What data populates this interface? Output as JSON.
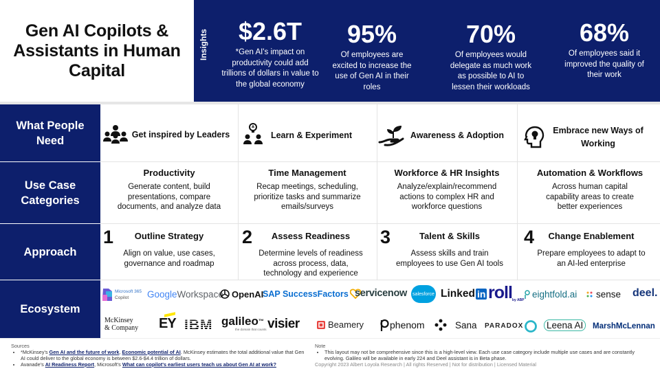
{
  "title": "Gen AI Copilots & Assistants in Human Capital",
  "insights": {
    "label": "Insights",
    "stats": [
      {
        "value": "$2.6T",
        "desc": "*Gen AI's impact on productivity could add trillions of dollars in value to the global economy"
      },
      {
        "value": "95%",
        "desc": "Of employees are excited to increase the use of Gen AI in their roles"
      },
      {
        "value": "70%",
        "desc": "Of employees would delegate as much work as possible to AI to lessen their workloads"
      },
      {
        "value": "68%",
        "desc": "Of  employees said it improved the quality of their work"
      }
    ]
  },
  "rows": {
    "needs_label": "What People Need",
    "use_case_label": "Use Case Categories",
    "approach_label": "Approach",
    "ecosystem_label": "Ecosystem"
  },
  "needs": [
    {
      "label": "Get inspired by Leaders",
      "icon": "audience-icon"
    },
    {
      "label": "Learn & Experiment",
      "icon": "idea-team-icon"
    },
    {
      "label": "Awareness & Adoption",
      "icon": "plant-hand-icon"
    },
    {
      "label": "Embrace new Ways of Working",
      "icon": "head-lightbulb-icon"
    }
  ],
  "use_cases": [
    {
      "title": "Productivity",
      "desc": "Generate content, build presentations, compare documents, and analyze data"
    },
    {
      "title": "Time Management",
      "desc": "Recap meetings, scheduling, prioritize tasks and summarize emails/surveys"
    },
    {
      "title": "Workforce & HR Insights",
      "desc": "Analyze/explain/recommend actions to complex HR and workforce questions"
    },
    {
      "title": "Automation & Workflows",
      "desc": "Across human capital capability areas to create better experiences"
    }
  ],
  "approach": [
    {
      "num": "1",
      "title": "Outline Strategy",
      "desc": "Align on value, use cases, governance and roadmap"
    },
    {
      "num": "2",
      "title": "Assess Readiness",
      "desc": "Determine levels of readiness across process, data, technology and experience"
    },
    {
      "num": "3",
      "title": "Talent & Skills",
      "desc": "Assess skills and train employees to use Gen AI tools"
    },
    {
      "num": "4",
      "title": "Change Enablement",
      "desc": "Prepare employees to adapt to an AI-led enterprise"
    }
  ],
  "ecosystem": {
    "ms365": {
      "line1": "Microsoft 365",
      "line2": "Copilot"
    },
    "google": {
      "g": "Google",
      "w": " Workspace"
    },
    "openai": "OpenAI",
    "sap": "SAP SuccessFactors",
    "servicenow": "servicenow",
    "salesforce": "salesforce",
    "linkedin": {
      "text": "Linked",
      "badge": "in"
    },
    "roll": {
      "text": "roll",
      "sub": "by ABP"
    },
    "eightfold": "eightfold.ai",
    "sense": "sense",
    "deel": "deel.",
    "mckinsey": {
      "line1": "McKinsey",
      "line2": "& Company"
    },
    "ey": "EY",
    "ibm": "IBM",
    "galileo": {
      "text": "galileo",
      "sup": "™",
      "sub": "the domain that counts"
    },
    "visier": "visier",
    "beamery": "Beamery",
    "phenom": "phenom",
    "sana": "Sana",
    "paradox": "PARADOX",
    "leena": {
      "text": "Leena AI"
    },
    "marsh": "MarshMcLennan"
  },
  "footer": {
    "sources_label": "Sources",
    "src1_pre": "*McKinsey's ",
    "src1_link1": "Gen AI and the future of work",
    "src1_mid": ", ",
    "src1_link2": "Economic potential of AI",
    "src1_post": ". McKinsey estimates the total additional value that Gen AI could deliver to the global economy is between $2.6-$4.4 trillion of dollars.",
    "src2_pre": "Avanade's ",
    "src2_link1": "AI Readiness Report",
    "src2_mid": ", Microsoft's ",
    "src2_link2": "What can copilot's earliest users teach us about Gen AI at work?",
    "note_label": "Note",
    "note": "This layout  may not be comprehensive since this is a high-level view. Each use case category include multiple use cases and are constantly evolving. Galileo will be available in early 224 and Deel assistant is in Beta phase.",
    "copyright": "Copyright 2023 Albert Loyola Research | All rights Reserved | Not for distribution | Licensed Material"
  },
  "colors": {
    "navy": "#0d1f6c",
    "sap_blue": "#0a6ed1",
    "linkedin": "#0a66c2",
    "salesforce": "#00a1e0",
    "beamery": "#e8433f",
    "deel": "#15357a"
  }
}
